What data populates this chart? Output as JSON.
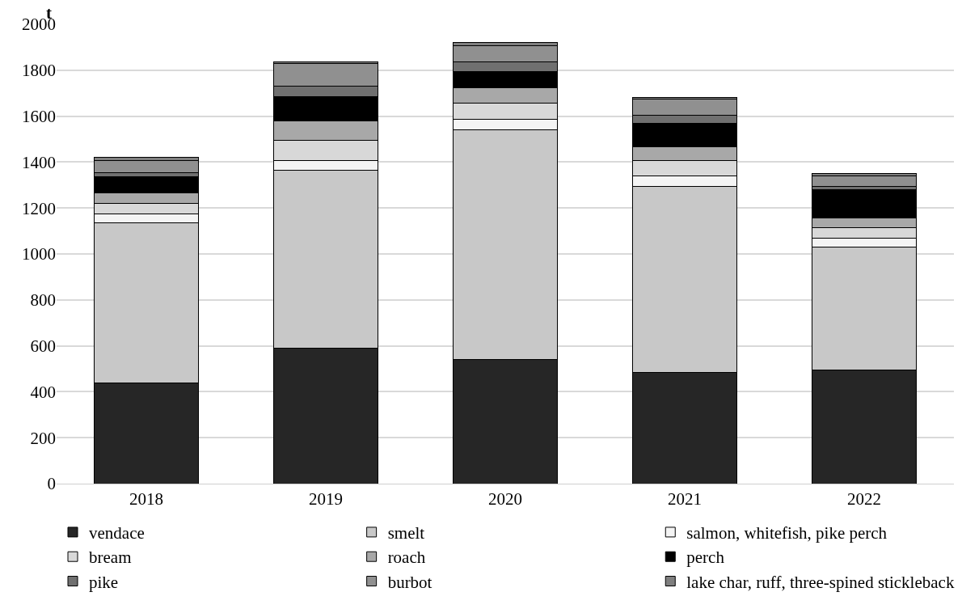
{
  "chart_data": {
    "type": "bar",
    "stacked": true,
    "ylabel": "t",
    "categories": [
      "2018",
      "2019",
      "2020",
      "2021",
      "2022"
    ],
    "ylim": [
      0,
      2000
    ],
    "yticks": [
      0,
      200,
      400,
      600,
      800,
      1000,
      1200,
      1400,
      1600,
      1800,
      2000
    ],
    "grid": "y",
    "legend": "bottom",
    "series": [
      {
        "name": "vendace",
        "color": "#262626",
        "values": [
          440,
          590,
          540,
          485,
          495
        ]
      },
      {
        "name": "smelt",
        "color": "#c8c8c8",
        "values": [
          695,
          775,
          1000,
          810,
          535
        ]
      },
      {
        "name": "salmon, whitefish, pike perch",
        "color": "#f4f4f4",
        "values": [
          40,
          40,
          45,
          45,
          40
        ]
      },
      {
        "name": "bream",
        "color": "#d8d8d8",
        "values": [
          45,
          90,
          70,
          65,
          45
        ]
      },
      {
        "name": "roach",
        "color": "#a8a8a8",
        "values": [
          45,
          85,
          70,
          60,
          40
        ]
      },
      {
        "name": "perch",
        "color": "#000000",
        "values": [
          70,
          105,
          70,
          105,
          125
        ]
      },
      {
        "name": "pike",
        "color": "#707070",
        "values": [
          20,
          45,
          40,
          35,
          15
        ]
      },
      {
        "name": "burbot",
        "color": "#909090",
        "values": [
          50,
          100,
          70,
          70,
          45
        ]
      },
      {
        "name": "lake char, ruff, three-spined stickleback",
        "color": "#7f7f7f",
        "values": [
          15,
          5,
          15,
          5,
          10
        ]
      }
    ]
  }
}
